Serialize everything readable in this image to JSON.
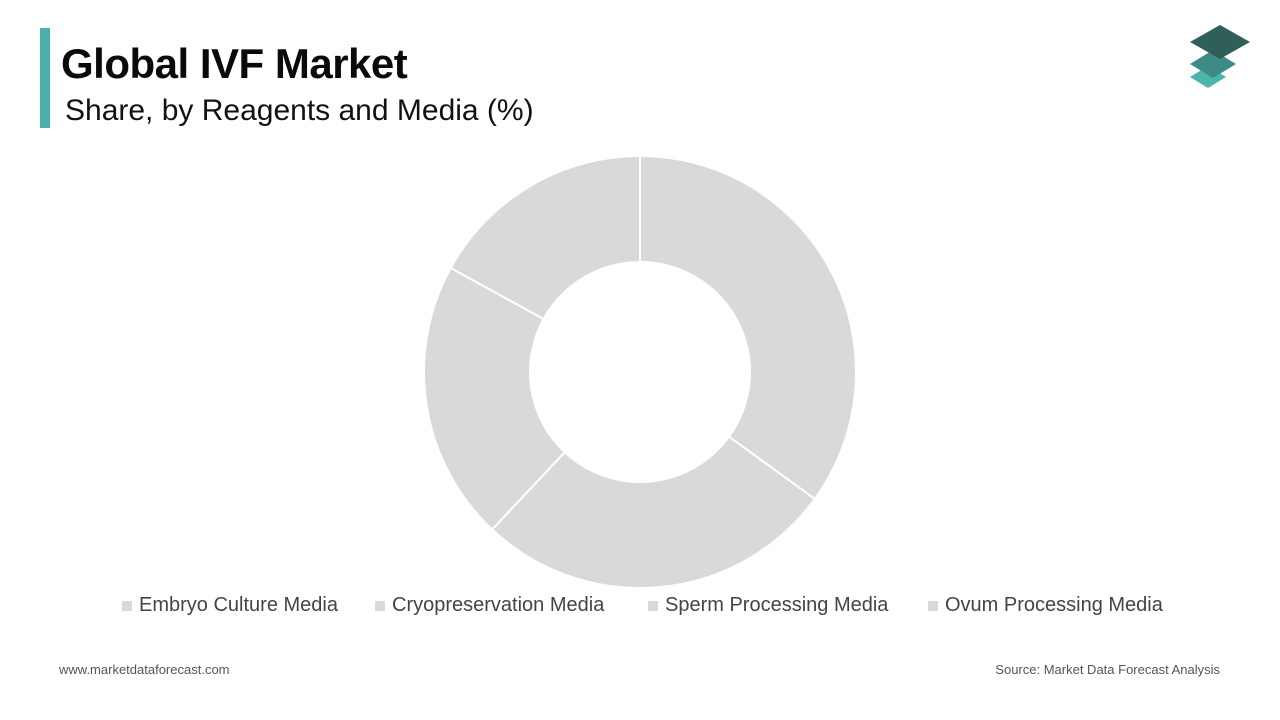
{
  "header": {
    "title": "Global IVF Market",
    "subtitle": "Share, by Reagents and Media (%)",
    "accent_color": "#4aaeaa"
  },
  "logo": {
    "icon": "stacked-layers-logo",
    "colors": [
      "#2f5f58",
      "#3c8b86",
      "#4ab5ac"
    ]
  },
  "chart_data": {
    "type": "pie",
    "donut": true,
    "categories": [
      "Embryo Culture Media",
      "Cryopreservation Media",
      "Sperm Processing Media",
      "Ovum Processing Media"
    ],
    "values": [
      35,
      27,
      21,
      17
    ],
    "colors": [
      "#d9d9d9",
      "#d9d9d9",
      "#d9d9d9",
      "#d9d9d9"
    ],
    "start_angle_deg": 0,
    "direction": "clockwise",
    "legend_position": "bottom"
  },
  "footer": {
    "website": "www.marketdataforecast.com",
    "source": "Source: Market Data Forecast Analysis"
  }
}
